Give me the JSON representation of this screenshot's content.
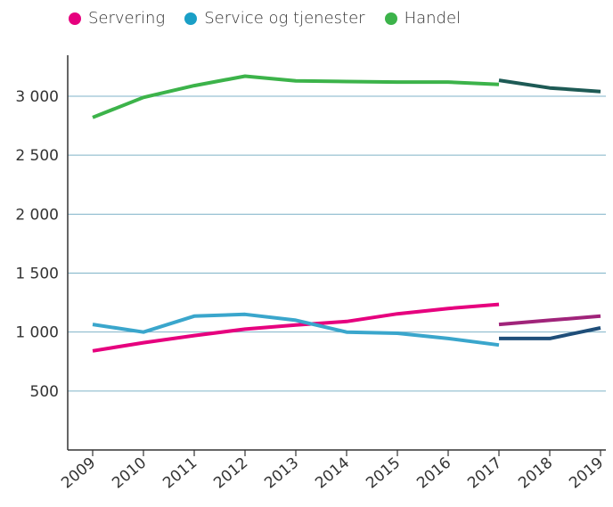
{
  "legend": [
    {
      "label": "Servering",
      "color": "#e6007e"
    },
    {
      "label": "Service og tjenester",
      "color": "#1a9fc6"
    },
    {
      "label": "Handel",
      "color": "#3cb34a"
    }
  ],
  "chart_data": {
    "type": "line",
    "title": "",
    "xlabel": "",
    "ylabel": "",
    "x": [
      "2009",
      "2010",
      "2011",
      "2012",
      "2013",
      "2014",
      "2015",
      "2016",
      "2017",
      "2018",
      "2019"
    ],
    "ylim": [
      0,
      3300
    ],
    "yticks": [
      500,
      1000,
      1500,
      2000,
      2500,
      3000
    ],
    "ytick_labels": [
      "500",
      "1 000",
      "1 500",
      "2 000",
      "2 500",
      "3 000"
    ],
    "grid": "horizontal",
    "legend_position": "top-left",
    "series": [
      {
        "name": "Servering",
        "color": "#e6007e",
        "values": [
          840,
          910,
          970,
          1025,
          1060,
          1090,
          1155,
          1200,
          1235,
          null,
          null
        ]
      },
      {
        "name": "Service og tjenester",
        "color": "#3aa6cc",
        "values": [
          1065,
          1000,
          1135,
          1150,
          1100,
          1000,
          990,
          945,
          890,
          null,
          null
        ]
      },
      {
        "name": "Handel",
        "color": "#3cb34a",
        "values": [
          2820,
          2990,
          3090,
          3170,
          3130,
          3125,
          3120,
          3120,
          3100,
          null,
          null
        ]
      },
      {
        "name": "",
        "color": "#a0247a",
        "values": [
          null,
          null,
          null,
          null,
          null,
          null,
          null,
          null,
          1065,
          1100,
          1135
        ]
      },
      {
        "name": "",
        "color": "#1f4e79",
        "values": [
          null,
          null,
          null,
          null,
          null,
          null,
          null,
          null,
          945,
          945,
          1035
        ]
      },
      {
        "name": "",
        "color": "#1d5a55",
        "values": [
          null,
          null,
          null,
          null,
          null,
          null,
          null,
          null,
          3135,
          3070,
          3040
        ]
      }
    ]
  }
}
